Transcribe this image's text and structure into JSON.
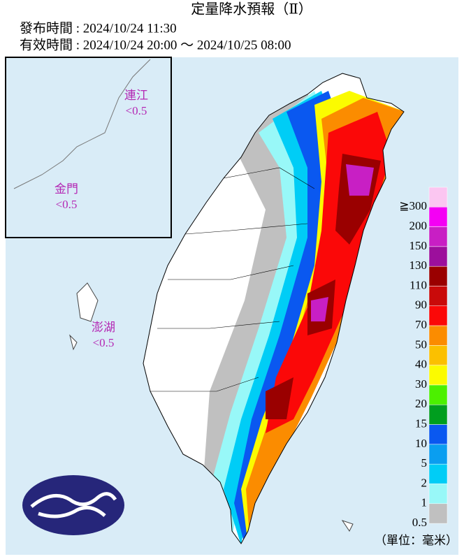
{
  "header": {
    "title": "定量降水預報（Ⅱ）",
    "issued": "發布時間 : 2024/10/24 11:30",
    "valid": "有效時間 : 2024/10/24 20:00 ～ 2024/10/25 08:00"
  },
  "islands": [
    {
      "name": "連江",
      "value": "<0.5"
    },
    {
      "name": "金門",
      "value": "<0.5"
    },
    {
      "name": "澎湖",
      "value": "<0.5"
    }
  ],
  "legend": {
    "unit": "（單位：毫米）",
    "items": [
      {
        "label": "≧300",
        "color": "#fbc6f1"
      },
      {
        "label": "200",
        "color": "#f400f4"
      },
      {
        "label": "150",
        "color": "#c81fc4"
      },
      {
        "label": "130",
        "color": "#9c0f9c"
      },
      {
        "label": "110",
        "color": "#9a0000"
      },
      {
        "label": "90",
        "color": "#c90a0a"
      },
      {
        "label": "70",
        "color": "#fb0808"
      },
      {
        "label": "50",
        "color": "#fb8c00"
      },
      {
        "label": "40",
        "color": "#fbc000"
      },
      {
        "label": "30",
        "color": "#fbfb00"
      },
      {
        "label": "20",
        "color": "#4cf000"
      },
      {
        "label": "15",
        "color": "#009e1f"
      },
      {
        "label": "10",
        "color": "#0a58f0"
      },
      {
        "label": "5",
        "color": "#0a9ef0"
      },
      {
        "label": "2",
        "color": "#00cdf6"
      },
      {
        "label": "1",
        "color": "#98f8f8"
      },
      {
        "label": "0.5",
        "color": "#c0c0c0"
      }
    ]
  }
}
